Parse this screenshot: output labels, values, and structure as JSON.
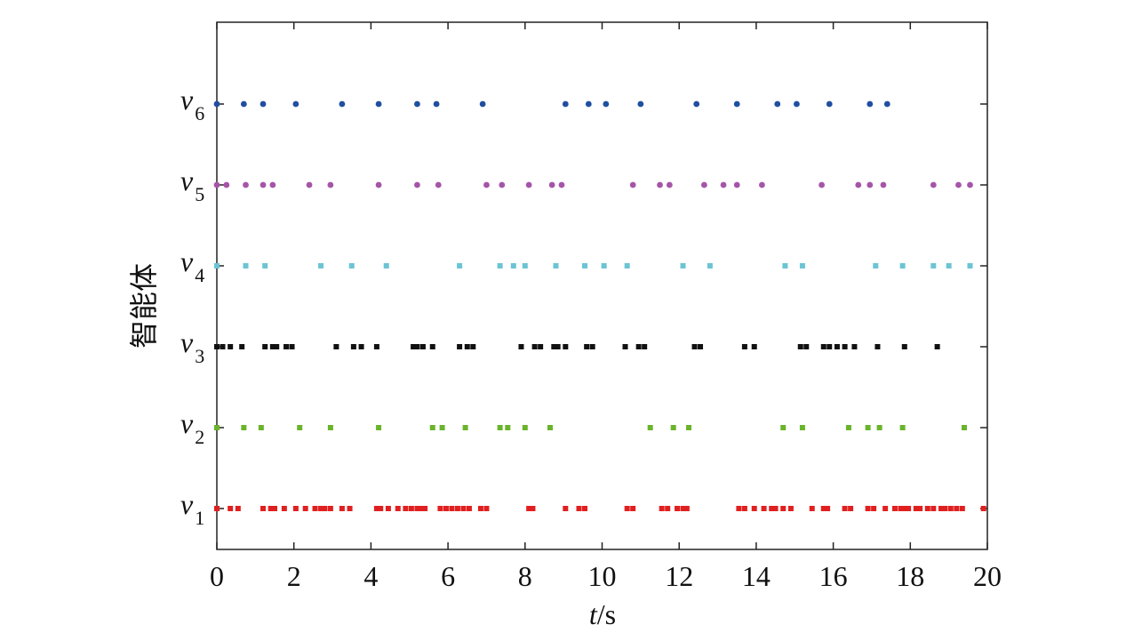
{
  "chart_data": {
    "type": "scatter",
    "title": "",
    "xlabel": {
      "italic": "t",
      "rest": "/s"
    },
    "ylabel": "智能体",
    "xlim": [
      0,
      20
    ],
    "xticks": [
      0,
      2,
      4,
      6,
      8,
      10,
      12,
      14,
      16,
      18,
      20
    ],
    "xtick_labels": [
      "0",
      "2",
      "4",
      "6",
      "8",
      "10",
      "12",
      "14",
      "16",
      "18",
      "20"
    ],
    "grid": false,
    "legend": "none",
    "series": [
      {
        "name": "v1",
        "label_main": "v",
        "label_sub": "1",
        "color": "#e02020",
        "marker": "square",
        "times": [
          0,
          0.35,
          0.55,
          1.2,
          1.4,
          1.5,
          1.75,
          2.05,
          2.3,
          2.55,
          2.7,
          2.8,
          2.95,
          3.25,
          3.45,
          4.15,
          4.25,
          4.45,
          4.7,
          4.9,
          5.05,
          5.2,
          5.3,
          5.4,
          5.8,
          5.95,
          6.1,
          6.25,
          6.4,
          6.55,
          6.85,
          7.0,
          8.1,
          8.2,
          9.05,
          9.4,
          9.55,
          10.65,
          10.8,
          11.55,
          11.7,
          11.95,
          12.1,
          12.2,
          13.55,
          13.7,
          13.95,
          14.2,
          14.4,
          14.5,
          14.7,
          14.9,
          15.45,
          15.75,
          15.85,
          16.3,
          16.45,
          16.9,
          17.05,
          17.35,
          17.6,
          17.75,
          17.85,
          17.95,
          18.15,
          18.25,
          18.45,
          18.6,
          18.8,
          18.9,
          19.05,
          19.2,
          19.35,
          19.9
        ]
      },
      {
        "name": "v2",
        "label_main": "v",
        "label_sub": "2",
        "color": "#6ab42c",
        "marker": "square",
        "times": [
          0,
          0.7,
          1.15,
          2.15,
          2.95,
          4.2,
          5.6,
          5.85,
          6.45,
          7.35,
          7.55,
          8.0,
          8.65,
          11.25,
          11.85,
          12.25,
          14.7,
          15.2,
          16.4,
          16.9,
          17.2,
          17.8,
          19.4
        ]
      },
      {
        "name": "v3",
        "label_main": "v",
        "label_sub": "3",
        "color": "#111111",
        "marker": "square",
        "times": [
          0,
          0.15,
          0.35,
          0.65,
          1.25,
          1.45,
          1.55,
          1.8,
          1.95,
          3.1,
          3.55,
          3.75,
          4.15,
          5.1,
          5.2,
          5.35,
          5.6,
          6.3,
          6.5,
          6.65,
          7.9,
          8.25,
          8.4,
          8.75,
          8.85,
          9.05,
          9.6,
          9.75,
          10.6,
          10.95,
          11.1,
          12.4,
          12.55,
          13.7,
          13.95,
          15.15,
          15.3,
          15.75,
          15.9,
          16.1,
          16.3,
          16.55,
          17.15,
          17.85,
          18.7
        ]
      },
      {
        "name": "v4",
        "label_main": "v",
        "label_sub": "4",
        "color": "#6cc4d4",
        "marker": "square",
        "times": [
          0,
          0.75,
          1.25,
          2.7,
          3.5,
          4.4,
          6.3,
          7.35,
          7.7,
          8.0,
          8.8,
          9.55,
          10.05,
          10.65,
          12.1,
          12.8,
          14.75,
          15.2,
          17.1,
          17.8,
          18.6,
          19.0,
          19.55
        ]
      },
      {
        "name": "v5",
        "label_main": "v",
        "label_sub": "5",
        "color": "#a555a8",
        "marker": "circle",
        "times": [
          0,
          0.25,
          0.75,
          1.2,
          1.45,
          2.4,
          2.95,
          4.2,
          5.2,
          5.75,
          7.0,
          7.4,
          8.1,
          8.7,
          8.95,
          10.8,
          11.5,
          11.75,
          12.65,
          13.15,
          13.5,
          14.15,
          15.7,
          16.65,
          16.95,
          17.3,
          18.6,
          19.25,
          19.55
        ]
      },
      {
        "name": "v6",
        "label_main": "v",
        "label_sub": "6",
        "color": "#1f4fa0",
        "marker": "circle",
        "times": [
          0,
          0.7,
          1.2,
          2.05,
          3.25,
          4.2,
          5.2,
          5.7,
          6.9,
          9.05,
          9.65,
          10.1,
          11.0,
          12.45,
          13.5,
          14.55,
          15.05,
          15.9,
          16.95,
          17.4
        ]
      }
    ]
  }
}
